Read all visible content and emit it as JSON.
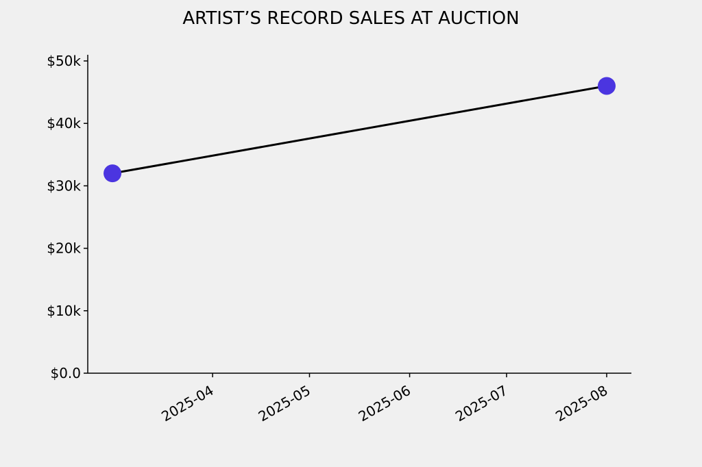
{
  "chart_data": {
    "type": "line",
    "title": "ARTIST’S RECORD SALES AT AUCTION",
    "x": [
      "2025-03",
      "2025-08"
    ],
    "values": [
      32000,
      46000
    ],
    "color": "#4b35e0",
    "line_color": "#000000",
    "ylim": [
      0,
      50000
    ],
    "yticks": [
      {
        "value": 0,
        "label": "$0.0"
      },
      {
        "value": 10000,
        "label": "$10k"
      },
      {
        "value": 20000,
        "label": "$20k"
      },
      {
        "value": 30000,
        "label": "$30k"
      },
      {
        "value": 40000,
        "label": "$40k"
      },
      {
        "value": 50000,
        "label": "$50k"
      }
    ],
    "xticks": [
      "2025-04",
      "2025-05",
      "2025-06",
      "2025-07",
      "2025-08"
    ],
    "grid": false
  }
}
